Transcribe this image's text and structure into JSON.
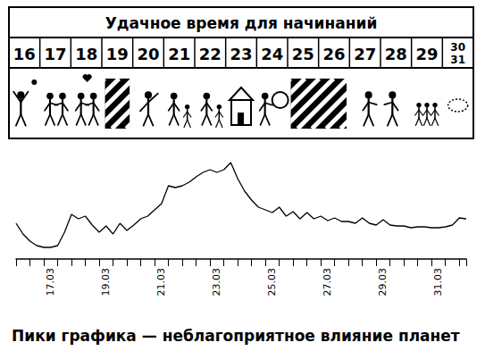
{
  "calendar": {
    "title": "Удачное время для начинаний",
    "days": [
      [
        "16"
      ],
      [
        "17"
      ],
      [
        "18"
      ],
      [
        "19"
      ],
      [
        "20"
      ],
      [
        "21"
      ],
      [
        "22"
      ],
      [
        "23"
      ],
      [
        "24"
      ],
      [
        "25"
      ],
      [
        "26"
      ],
      [
        "27"
      ],
      [
        "28"
      ],
      [
        "29"
      ],
      [
        "30",
        "31"
      ]
    ]
  },
  "chart_data": {
    "type": "line",
    "title": "Пики графика — неблагоприятное влияние планет",
    "categories": [
      null,
      null,
      null,
      null,
      null,
      "17.03",
      null,
      null,
      null,
      null,
      null,
      null,
      null,
      "19.03",
      null,
      null,
      null,
      null,
      null,
      null,
      null,
      "21.03",
      null,
      null,
      null,
      null,
      null,
      null,
      null,
      "23.03",
      null,
      null,
      null,
      null,
      null,
      null,
      null,
      "25.03",
      null,
      null,
      null,
      null,
      null,
      null,
      null,
      "27.03",
      null,
      null,
      null,
      null,
      null,
      null,
      null,
      "29.03",
      null,
      null,
      null,
      null,
      null,
      null,
      null,
      "31.03",
      null,
      null,
      null,
      null
    ],
    "values": [
      40,
      28,
      20,
      15,
      13,
      13,
      15,
      30,
      50,
      45,
      48,
      38,
      30,
      37,
      28,
      40,
      32,
      38,
      45,
      48,
      55,
      62,
      82,
      80,
      82,
      86,
      92,
      97,
      100,
      97,
      100,
      108,
      90,
      76,
      66,
      58,
      55,
      52,
      58,
      48,
      53,
      45,
      52,
      45,
      48,
      43,
      46,
      42,
      42,
      40,
      46,
      40,
      38,
      44,
      38,
      37,
      37,
      35,
      36,
      36,
      35,
      35,
      36,
      38,
      46,
      45
    ],
    "color": "#000000",
    "ylim": [
      0,
      120
    ],
    "grid": false,
    "tick_labels": "x"
  }
}
